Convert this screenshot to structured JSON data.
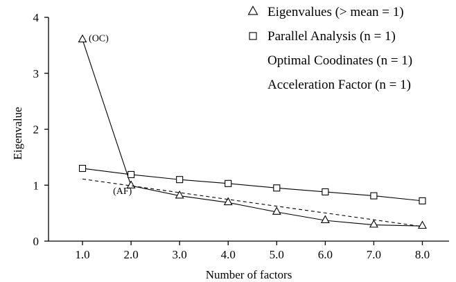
{
  "chart_data": {
    "type": "line",
    "x": [
      0.9,
      1.9,
      2.9,
      3.9,
      4.9,
      5.9,
      6.9,
      7.9
    ],
    "x_tick_labels": [
      "1.0",
      "2.0",
      "3.0",
      "4.0",
      "5.0",
      "6.0",
      "7.0",
      "8.0"
    ],
    "x_tick_values": [
      0.9,
      1.9,
      2.9,
      3.9,
      4.9,
      5.9,
      6.9,
      7.9
    ],
    "y_tick_labels": [
      "0",
      "1",
      "2",
      "3",
      "4"
    ],
    "y_tick_values": [
      0,
      1,
      2,
      3,
      4
    ],
    "xlim": [
      0.2,
      8.45
    ],
    "ylim": [
      0,
      4
    ],
    "xlabel": "Number of factors",
    "ylabel": "Eigenvalue",
    "grid": false,
    "legend_position": "top-right",
    "series": [
      {
        "name": "Eigenvalues (> mean = 1)",
        "marker": "triangle",
        "line": "solid",
        "values": [
          3.6,
          0.99,
          0.81,
          0.69,
          0.52,
          0.37,
          0.29,
          0.27
        ]
      },
      {
        "name": "Parallel Analysis (n = 1)",
        "marker": "square",
        "line": "solid",
        "values": [
          1.3,
          1.19,
          1.1,
          1.03,
          0.95,
          0.88,
          0.81,
          0.72
        ]
      },
      {
        "line": "dashed",
        "x": [
          0.9,
          7.9
        ],
        "values": [
          1.11,
          0.26
        ]
      }
    ],
    "legend": [
      {
        "label": "Eigenvalues (> mean = 1)",
        "marker": "triangle"
      },
      {
        "label": "Parallel Analysis (n = 1)",
        "marker": "square"
      },
      {
        "label": "Optimal Coodinates (n = 1)",
        "marker": "none"
      },
      {
        "label": "Acceleration Factor (n = 1)",
        "marker": "none"
      }
    ],
    "annotations": [
      {
        "text": "(OC)",
        "x": 0.9,
        "y": 3.6
      },
      {
        "text": "(AF)",
        "x": 1.9,
        "y": 0.99
      }
    ]
  }
}
